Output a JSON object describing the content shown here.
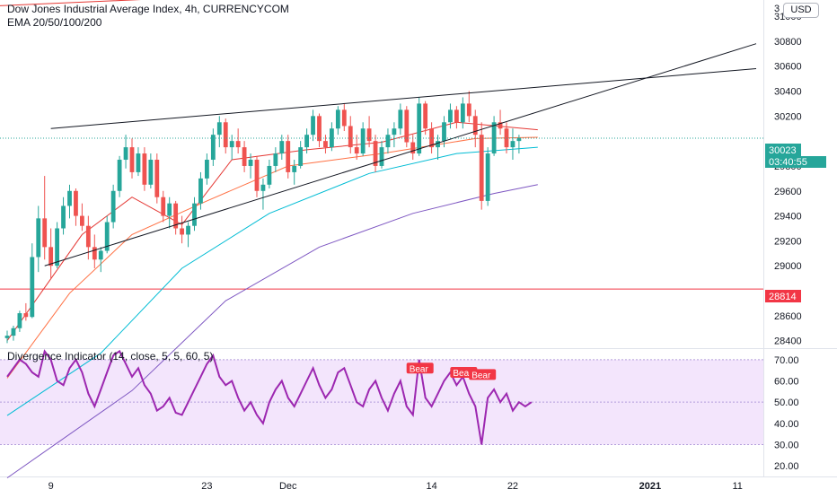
{
  "header": {
    "title": "Dow Jones Industrial Average Index, 4h, CURRENCYCOM",
    "ema_label": "EMA 20/50/100/200",
    "currency": "USD"
  },
  "price_axis": {
    "ticks": [
      "31000",
      "30800",
      "30600",
      "30400",
      "30200",
      "29800",
      "29600",
      "29400",
      "29200",
      "29000",
      "28600",
      "28400"
    ],
    "top_partial": "3"
  },
  "price_tags": {
    "last": "30023",
    "countdown": "03:40:55",
    "level": "28814",
    "last_color": "#26a69a",
    "level_color": "#f23645"
  },
  "indicator": {
    "label": "Divergence Indicator (14, close, 5, 5, 60, 5)",
    "ticks": [
      "70.00",
      "60.00",
      "50.00",
      "40.00",
      "30.00",
      "20.00"
    ],
    "bear_labels": [
      "Bear",
      "Bear",
      "Bear"
    ],
    "color": "#9c27b0",
    "band_color": "#f3e5fc"
  },
  "time_axis": {
    "labels": [
      "9",
      "23",
      "Dec",
      "14",
      "22",
      "2021",
      "11"
    ]
  },
  "chart_data": {
    "type": "candlestick",
    "symbol": "Dow Jones Industrial Average Index",
    "interval": "4h",
    "ylim": [
      28340,
      31130
    ],
    "candles": [
      [
        28420,
        28480,
        28380,
        28440
      ],
      [
        28440,
        28520,
        28400,
        28500
      ],
      [
        28500,
        28640,
        28470,
        28620
      ],
      [
        28620,
        28700,
        28560,
        28590
      ],
      [
        28590,
        29180,
        28580,
        29070
      ],
      [
        29070,
        29480,
        28950,
        29380
      ],
      [
        29380,
        29720,
        29050,
        29150
      ],
      [
        29150,
        29300,
        28900,
        29000
      ],
      [
        29000,
        29350,
        28980,
        29300
      ],
      [
        29300,
        29550,
        29250,
        29480
      ],
      [
        29480,
        29650,
        29380,
        29600
      ],
      [
        29600,
        29620,
        29320,
        29400
      ],
      [
        29400,
        29500,
        29280,
        29320
      ],
      [
        29320,
        29400,
        29050,
        29150
      ],
      [
        29150,
        29250,
        28980,
        29050
      ],
      [
        29050,
        29150,
        28950,
        29120
      ],
      [
        29120,
        29400,
        29100,
        29350
      ],
      [
        29350,
        29650,
        29300,
        29600
      ],
      [
        29600,
        29880,
        29550,
        29850
      ],
      [
        29850,
        30050,
        29780,
        29950
      ],
      [
        29950,
        30020,
        29700,
        29750
      ],
      [
        29750,
        29950,
        29720,
        29900
      ],
      [
        29900,
        29950,
        29600,
        29650
      ],
      [
        29650,
        29900,
        29620,
        29850
      ],
      [
        29850,
        29900,
        29500,
        29550
      ],
      [
        29550,
        29600,
        29350,
        29400
      ],
      [
        29400,
        29550,
        29300,
        29500
      ],
      [
        29500,
        29520,
        29250,
        29300
      ],
      [
        29300,
        29400,
        29180,
        29250
      ],
      [
        29250,
        29350,
        29150,
        29320
      ],
      [
        29320,
        29550,
        29280,
        29500
      ],
      [
        29500,
        29750,
        29450,
        29700
      ],
      [
        29700,
        29900,
        29650,
        29850
      ],
      [
        29850,
        30100,
        29800,
        30050
      ],
      [
        30050,
        30200,
        29950,
        30150
      ],
      [
        30150,
        30180,
        29900,
        29950
      ],
      [
        29950,
        30050,
        29850,
        30000
      ],
      [
        30000,
        30100,
        29900,
        29950
      ],
      [
        29950,
        30000,
        29750,
        29800
      ],
      [
        29800,
        29900,
        29700,
        29850
      ],
      [
        29850,
        29880,
        29550,
        29600
      ],
      [
        29600,
        29700,
        29450,
        29650
      ],
      [
        29650,
        29850,
        29620,
        29800
      ],
      [
        29800,
        29950,
        29750,
        29900
      ],
      [
        29900,
        30050,
        29850,
        30000
      ],
      [
        30000,
        30050,
        29700,
        29750
      ],
      [
        29750,
        29850,
        29650,
        29800
      ],
      [
        29800,
        30000,
        29780,
        29950
      ],
      [
        29950,
        30100,
        29900,
        30050
      ],
      [
        30050,
        30250,
        30000,
        30200
      ],
      [
        30200,
        30220,
        29950,
        30000
      ],
      [
        30000,
        30050,
        29900,
        29950
      ],
      [
        29950,
        30150,
        29920,
        30100
      ],
      [
        30100,
        30280,
        30050,
        30250
      ],
      [
        30250,
        30300,
        30080,
        30120
      ],
      [
        30120,
        30200,
        29900,
        29950
      ],
      [
        29950,
        30050,
        29850,
        29900
      ],
      [
        29900,
        30150,
        29880,
        30100
      ],
      [
        30100,
        30200,
        29950,
        30000
      ],
      [
        30000,
        30050,
        29750,
        29800
      ],
      [
        29800,
        30000,
        29780,
        29950
      ],
      [
        29950,
        30100,
        29900,
        30050
      ],
      [
        30050,
        30150,
        29950,
        30100
      ],
      [
        30100,
        30300,
        30050,
        30250
      ],
      [
        30250,
        30280,
        29950,
        29990
      ],
      [
        29990,
        30050,
        29850,
        29900
      ],
      [
        29900,
        30350,
        29880,
        30300
      ],
      [
        30300,
        30320,
        30050,
        30100
      ],
      [
        30100,
        30150,
        29900,
        29950
      ],
      [
        29950,
        30050,
        29850,
        30000
      ],
      [
        30000,
        30200,
        29950,
        30150
      ],
      [
        30150,
        30300,
        30100,
        30250
      ],
      [
        30250,
        30280,
        30100,
        30150
      ],
      [
        30150,
        30350,
        30100,
        30300
      ],
      [
        30300,
        30400,
        30150,
        30200
      ],
      [
        30200,
        30250,
        29950,
        30050
      ],
      [
        30050,
        30150,
        29450,
        29520
      ],
      [
        29520,
        29950,
        29480,
        29900
      ],
      [
        29900,
        30200,
        29880,
        30150
      ],
      [
        30150,
        30250,
        30050,
        30100
      ],
      [
        30100,
        30150,
        29900,
        29950
      ],
      [
        29950,
        30100,
        29850,
        30000
      ],
      [
        30000,
        30050,
        29900,
        30023
      ]
    ],
    "ema": [
      {
        "name": "EMA 20",
        "color": "#e53935",
        "values": [
          [
            0,
            28400
          ],
          [
            12,
            29250
          ],
          [
            20,
            29550
          ],
          [
            28,
            29330
          ],
          [
            36,
            29850
          ],
          [
            48,
            29930
          ],
          [
            60,
            29990
          ],
          [
            72,
            30150
          ],
          [
            85,
            30090
          ]
        ]
      },
      {
        "name": "EMA 50",
        "color": "#ff7043",
        "values": [
          [
            0,
            28100
          ],
          [
            10,
            28780
          ],
          [
            20,
            29250
          ],
          [
            32,
            29520
          ],
          [
            45,
            29800
          ],
          [
            60,
            29900
          ],
          [
            75,
            30020
          ],
          [
            85,
            30030
          ]
        ]
      },
      {
        "name": "EMA 100",
        "color": "#00bcd4",
        "values": [
          [
            0,
            27800
          ],
          [
            15,
            28300
          ],
          [
            28,
            28980
          ],
          [
            42,
            29420
          ],
          [
            58,
            29740
          ],
          [
            72,
            29900
          ],
          [
            85,
            29950
          ]
        ]
      },
      {
        "name": "EMA 200",
        "color": "#7e57c2",
        "values": [
          [
            0,
            27300
          ],
          [
            20,
            28000
          ],
          [
            35,
            28720
          ],
          [
            50,
            29150
          ],
          [
            65,
            29420
          ],
          [
            78,
            29580
          ],
          [
            85,
            29650
          ]
        ]
      }
    ],
    "trendlines": [
      {
        "name": "upper-wedge",
        "color": "#131722",
        "from": [
          7,
          30100
        ],
        "to": [
          120,
          30580
        ]
      },
      {
        "name": "lower-wedge",
        "color": "#131722",
        "from": [
          6,
          29000
        ],
        "to": [
          120,
          30780
        ]
      },
      {
        "name": "top-red",
        "color": "#e53935",
        "from": [
          -3,
          31080
        ],
        "to": [
          70,
          31240
        ]
      }
    ],
    "horizontal_levels": [
      {
        "value": 28814,
        "color": "#f23645"
      }
    ],
    "indicator_values": [
      62,
      66,
      70,
      68,
      64,
      62,
      74,
      70,
      60,
      58,
      66,
      70,
      64,
      54,
      48,
      56,
      64,
      72,
      74,
      68,
      62,
      66,
      58,
      54,
      46,
      48,
      52,
      45,
      44,
      50,
      56,
      62,
      68,
      72,
      62,
      58,
      60,
      52,
      46,
      50,
      44,
      40,
      50,
      56,
      60,
      52,
      48,
      54,
      60,
      66,
      58,
      52,
      56,
      64,
      66,
      58,
      50,
      48,
      56,
      60,
      52,
      46,
      54,
      60,
      48,
      44,
      70,
      52,
      48,
      54,
      60,
      64,
      58,
      62,
      54,
      48,
      30,
      52,
      56,
      50,
      54,
      46,
      50,
      48,
      50
    ],
    "indicator_range": [
      15,
      75
    ],
    "indicator_band": [
      30,
      70
    ],
    "grid": false,
    "legend": "top-left"
  }
}
